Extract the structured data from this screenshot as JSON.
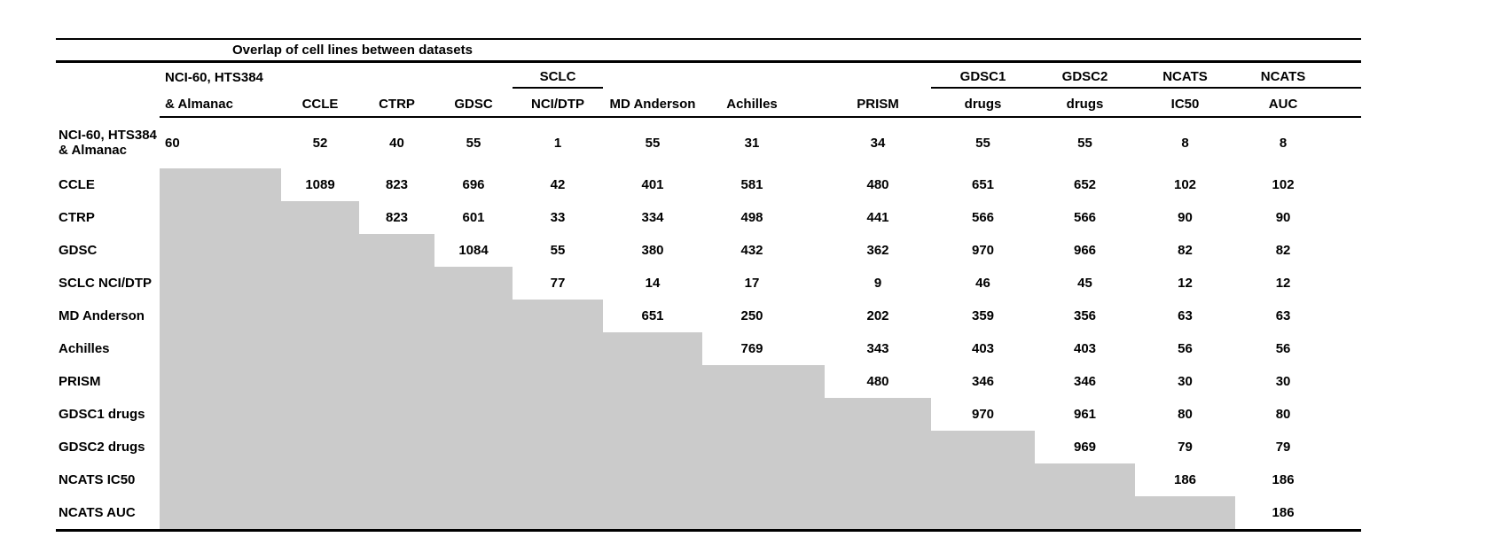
{
  "table": {
    "title": "Overlap of cell lines between datasets",
    "gray_color": "#cbcbcb",
    "columns": [
      {
        "top": "NCI-60, HTS384",
        "bottom": "& Almanac",
        "group_underline": false
      },
      {
        "top": "",
        "bottom": "CCLE",
        "group_underline": false
      },
      {
        "top": "",
        "bottom": "CTRP",
        "group_underline": false
      },
      {
        "top": "",
        "bottom": "GDSC",
        "group_underline": false
      },
      {
        "top": "SCLC",
        "bottom": "NCI/DTP",
        "group_underline": true
      },
      {
        "top": "",
        "bottom": "MD Anderson",
        "group_underline": false
      },
      {
        "top": "",
        "bottom": "Achilles",
        "group_underline": false
      },
      {
        "top": "",
        "bottom": "PRISM",
        "group_underline": false
      },
      {
        "top": "GDSC1",
        "bottom": "drugs",
        "group_underline": true
      },
      {
        "top": "GDSC2",
        "bottom": "drugs",
        "group_underline": true
      },
      {
        "top": "NCATS",
        "bottom": "IC50",
        "group_underline": true
      },
      {
        "top": "NCATS",
        "bottom": "AUC",
        "group_underline": true
      }
    ],
    "rows": [
      {
        "label_lines": [
          "NCI-60, HTS384",
          "& Almanac"
        ],
        "values": [
          "60",
          "52",
          "40",
          "55",
          "1",
          "55",
          "31",
          "34",
          "55",
          "55",
          "8",
          "8"
        ]
      },
      {
        "label_lines": [
          "CCLE"
        ],
        "values": [
          null,
          "1089",
          "823",
          "696",
          "42",
          "401",
          "581",
          "480",
          "651",
          "652",
          "102",
          "102"
        ]
      },
      {
        "label_lines": [
          "CTRP"
        ],
        "values": [
          null,
          null,
          "823",
          "601",
          "33",
          "334",
          "498",
          "441",
          "566",
          "566",
          "90",
          "90"
        ]
      },
      {
        "label_lines": [
          "GDSC"
        ],
        "values": [
          null,
          null,
          null,
          "1084",
          "55",
          "380",
          "432",
          "362",
          "970",
          "966",
          "82",
          "82"
        ]
      },
      {
        "label_lines": [
          "SCLC NCI/DTP"
        ],
        "values": [
          null,
          null,
          null,
          null,
          "77",
          "14",
          "17",
          "9",
          "46",
          "45",
          "12",
          "12"
        ]
      },
      {
        "label_lines": [
          "MD Anderson"
        ],
        "values": [
          null,
          null,
          null,
          null,
          null,
          "651",
          "250",
          "202",
          "359",
          "356",
          "63",
          "63"
        ]
      },
      {
        "label_lines": [
          "Achilles"
        ],
        "values": [
          null,
          null,
          null,
          null,
          null,
          null,
          "769",
          "343",
          "403",
          "403",
          "56",
          "56"
        ]
      },
      {
        "label_lines": [
          "PRISM"
        ],
        "values": [
          null,
          null,
          null,
          null,
          null,
          null,
          null,
          "480",
          "346",
          "346",
          "30",
          "30"
        ]
      },
      {
        "label_lines": [
          "GDSC1 drugs"
        ],
        "values": [
          null,
          null,
          null,
          null,
          null,
          null,
          null,
          null,
          "970",
          "961",
          "80",
          "80"
        ]
      },
      {
        "label_lines": [
          "GDSC2 drugs"
        ],
        "values": [
          null,
          null,
          null,
          null,
          null,
          null,
          null,
          null,
          null,
          "969",
          "79",
          "79"
        ]
      },
      {
        "label_lines": [
          "NCATS IC50"
        ],
        "values": [
          null,
          null,
          null,
          null,
          null,
          null,
          null,
          null,
          null,
          null,
          "186",
          "186"
        ]
      },
      {
        "label_lines": [
          "NCATS AUC"
        ],
        "values": [
          null,
          null,
          null,
          null,
          null,
          null,
          null,
          null,
          null,
          null,
          null,
          "186"
        ]
      }
    ]
  }
}
